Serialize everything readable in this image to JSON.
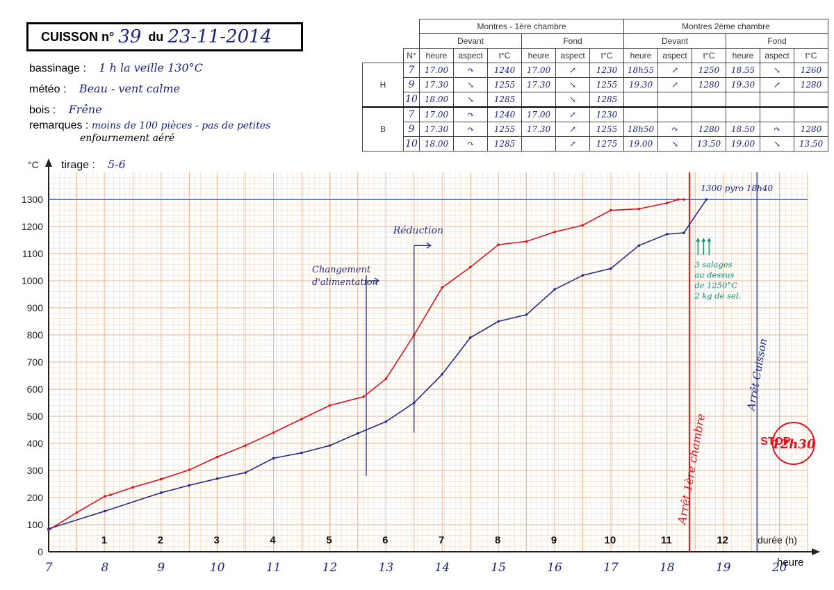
{
  "header": {
    "cuisson_label": "CUISSON n°",
    "cuisson_num": "39",
    "du_label": "du",
    "date": "23-11-2014"
  },
  "info": [
    {
      "label": "bassinage :",
      "value": "1 h la veille 130°C"
    },
    {
      "label": "météo :",
      "value": "Beau - vent calme"
    },
    {
      "label": "bois :",
      "value": "Frêne"
    },
    {
      "label": "remarques :",
      "value": "moins de 100 pièces - pas de petites",
      "value2": "enfournement aéré"
    }
  ],
  "table": {
    "groups": [
      "Montres - 1ère chambre",
      "Montres 2ème chambre"
    ],
    "subgroups": [
      "Devant",
      "Fond",
      "Devant",
      "Fond"
    ],
    "columns": [
      "N°",
      "heure",
      "aspect",
      "t°C",
      "heure",
      "aspect",
      "t°C",
      "heure",
      "aspect",
      "t°C",
      "heure",
      "aspect",
      "t°C"
    ],
    "rows": [
      {
        "section": "H",
        "cells": [
          "7",
          "17.00",
          "↷",
          "1240",
          "17.00",
          "↗",
          "1230",
          "18h55",
          "↗",
          "1250",
          "18.55",
          "↘",
          "1260"
        ]
      },
      {
        "section": "H",
        "cells": [
          "9",
          "17.30",
          "↘",
          "1255",
          "17.30",
          "↘",
          "1255",
          "19.30",
          "↗",
          "1280",
          "19.30",
          "↗",
          "1280"
        ]
      },
      {
        "section": "H",
        "cells": [
          "10",
          "18.00",
          "↘",
          "1285",
          "",
          "↘",
          "1285",
          "",
          "",
          "",
          "",
          "",
          ""
        ]
      },
      {
        "section": "B",
        "cells": [
          "7",
          "17.00",
          "↷",
          "1240",
          "17.00",
          "↗",
          "1230",
          "",
          "",
          "",
          "",
          "",
          ""
        ]
      },
      {
        "section": "B",
        "cells": [
          "9",
          "17.30",
          "↷",
          "1255",
          "17.30",
          "↗",
          "1255",
          "18h50",
          "↷",
          "1280",
          "18.50",
          "↷",
          "1280"
        ]
      },
      {
        "section": "B",
        "cells": [
          "10",
          "18.00",
          "↷",
          "1285",
          "",
          "↗",
          "1275",
          "19.00",
          "↘",
          "13.50",
          "19.00",
          "↘",
          "13.50"
        ]
      }
    ]
  },
  "chart_data": {
    "type": "line",
    "ylabel": "°C",
    "tirage_label": "tirage :",
    "tirage_value": "5-6",
    "x2label": "durée (h)",
    "xlabel": "heure",
    "ylim": [
      0,
      1300
    ],
    "xlim": [
      7,
      20.5
    ],
    "yticks": [
      0,
      100,
      200,
      300,
      400,
      500,
      600,
      700,
      800,
      900,
      1000,
      1100,
      1200,
      1300
    ],
    "hour_ticks": [
      "7",
      "8",
      "9",
      "10",
      "11",
      "12",
      "13",
      "14",
      "15",
      "16",
      "17",
      "18",
      "19",
      "20"
    ],
    "duration_ticks": [
      "1",
      "2",
      "3",
      "4",
      "5",
      "6",
      "7",
      "8",
      "9",
      "10",
      "11",
      "12"
    ],
    "grid": true,
    "series": [
      {
        "color": "#e0101a",
        "x": [
          7,
          7.5,
          8,
          8.1,
          8.5,
          9,
          9.5,
          10,
          10.5,
          11,
          11.5,
          12,
          12.6,
          13,
          13.5,
          14,
          14.5,
          15,
          15.5,
          16,
          16.5,
          17,
          17.5,
          18,
          18.2,
          18.3
        ],
        "y": [
          80,
          145,
          205,
          210,
          238,
          268,
          302,
          350,
          392,
          440,
          490,
          540,
          572,
          638,
          800,
          975,
          1050,
          1133,
          1145,
          1180,
          1205,
          1260,
          1265,
          1287,
          1300,
          1300
        ]
      },
      {
        "color": "#1f2a8c",
        "x": [
          7,
          8,
          9,
          9.5,
          10,
          10.5,
          11,
          11.5,
          12,
          12.5,
          13,
          13.5,
          14,
          14.5,
          15,
          15.5,
          16,
          16.5,
          17,
          17.5,
          18,
          18.3,
          18.7
        ],
        "y": [
          85,
          150,
          218,
          245,
          270,
          292,
          345,
          365,
          392,
          437,
          480,
          550,
          655,
          790,
          850,
          875,
          968,
          1020,
          1045,
          1130,
          1172,
          1177,
          1300
        ]
      }
    ],
    "hlines": [
      {
        "y": 1300,
        "color": "#3355cc"
      }
    ],
    "vlines": [
      {
        "x": 18.4,
        "color": "#e0101a",
        "label": "Arrêt 1ère chambre"
      },
      {
        "x": 19.6,
        "color": "#1f2a8c",
        "label": "Arrêt Cuisson"
      },
      {
        "x": 12.65,
        "color": "#1f2a8c",
        "y0": 280,
        "y1": 1020,
        "label": "Changement d'alimentation"
      },
      {
        "x": 13.5,
        "color": "#1f2a8c",
        "y0": 440,
        "y1": 1130,
        "label": "Réduction"
      }
    ],
    "annotations": {
      "peak": "1300 pyro 18h40",
      "salages": [
        "3 salages",
        "au dessus",
        "de 1250°C",
        "2 kg de sel."
      ],
      "stop": "STOP",
      "stop_time": "12h30"
    }
  }
}
